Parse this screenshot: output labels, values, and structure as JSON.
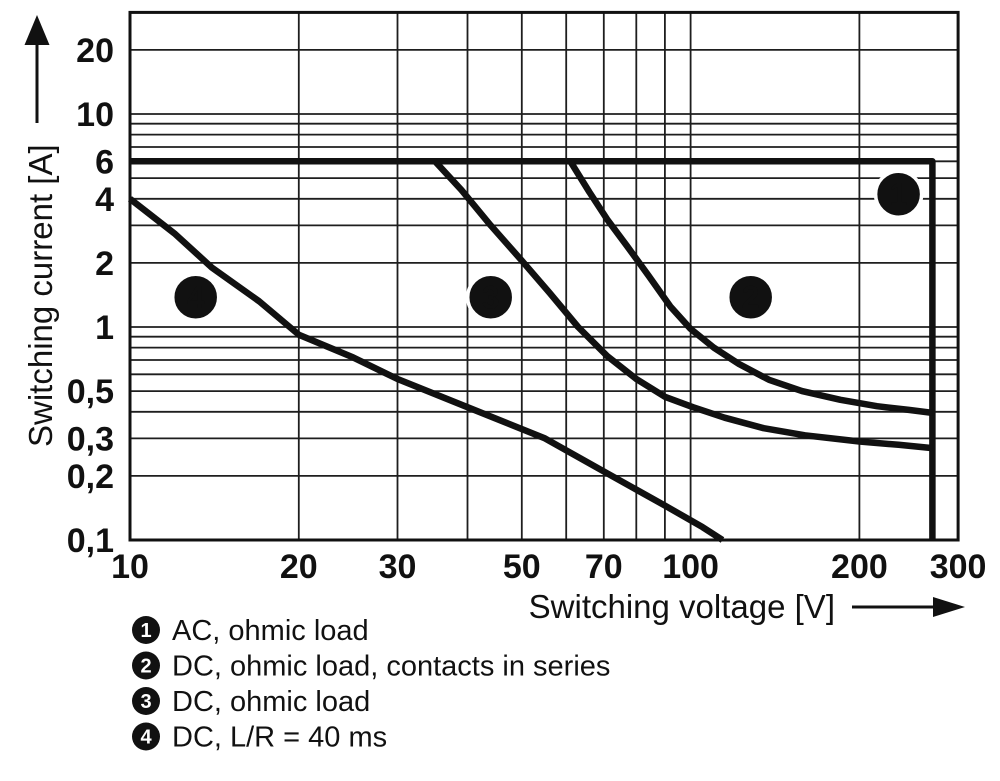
{
  "chart_data": {
    "type": "line",
    "x_scale": "log",
    "y_scale": "log",
    "xlim": [
      10,
      300
    ],
    "ylim": [
      0.1,
      30
    ],
    "xlabel": "Switching voltage [V]",
    "ylabel": "Switching current [A]",
    "grid": "on",
    "x_gridlines": [
      10,
      20,
      30,
      40,
      50,
      60,
      70,
      80,
      90,
      100,
      200,
      300
    ],
    "y_gridlines": [
      0.1,
      0.2,
      0.3,
      0.4,
      0.5,
      0.6,
      0.7,
      0.8,
      0.9,
      1,
      2,
      3,
      4,
      5,
      6,
      7,
      8,
      9,
      10,
      20,
      30
    ],
    "x_tick_values": [
      10,
      20,
      30,
      50,
      70,
      100,
      200,
      300
    ],
    "x_tick_labels": [
      "10",
      "20",
      "30",
      "50",
      "70",
      "100",
      "200",
      "300"
    ],
    "y_tick_values": [
      20,
      10,
      6,
      4,
      2,
      1,
      0.5,
      0.3,
      0.2,
      0.1
    ],
    "y_tick_labels": [
      "20",
      "10",
      "6",
      "4",
      "2",
      "1",
      "0,5",
      "0,3",
      "0,2",
      "0,1"
    ],
    "series": [
      {
        "id": "1",
        "name": "AC, ohmic load",
        "points": [
          [
            10,
            6
          ],
          [
            270,
            6
          ],
          [
            270,
            0.1
          ]
        ],
        "badge": {
          "x": 235,
          "y": 4.2
        }
      },
      {
        "id": "2",
        "name": "DC, ohmic load, contacts in series",
        "points": [
          [
            61,
            6
          ],
          [
            66,
            4.3
          ],
          [
            71,
            3.2
          ],
          [
            77,
            2.4
          ],
          [
            84,
            1.75
          ],
          [
            92,
            1.25
          ],
          [
            100,
            0.98
          ],
          [
            110,
            0.8
          ],
          [
            122,
            0.67
          ],
          [
            138,
            0.565
          ],
          [
            158,
            0.5
          ],
          [
            185,
            0.455
          ],
          [
            215,
            0.425
          ],
          [
            245,
            0.408
          ],
          [
            270,
            0.395
          ]
        ],
        "badge": {
          "x": 128,
          "y": 1.38
        }
      },
      {
        "id": "3",
        "name": "DC, ohmic load",
        "points": [
          [
            35,
            6
          ],
          [
            39,
            4.4
          ],
          [
            44,
            3.0
          ],
          [
            50,
            2.05
          ],
          [
            56,
            1.45
          ],
          [
            63,
            1.0
          ],
          [
            71,
            0.73
          ],
          [
            80,
            0.57
          ],
          [
            90,
            0.47
          ],
          [
            101,
            0.42
          ],
          [
            115,
            0.375
          ],
          [
            135,
            0.335
          ],
          [
            160,
            0.31
          ],
          [
            200,
            0.29
          ],
          [
            235,
            0.28
          ],
          [
            270,
            0.27
          ]
        ],
        "badge": {
          "x": 44,
          "y": 1.38
        }
      },
      {
        "id": "4",
        "name": "DC, L/R = 40 ms",
        "points": [
          [
            10,
            4
          ],
          [
            12,
            2.75
          ],
          [
            14,
            1.9
          ],
          [
            17,
            1.32
          ],
          [
            20,
            0.92
          ],
          [
            25,
            0.72
          ],
          [
            30,
            0.57
          ],
          [
            40,
            0.42
          ],
          [
            55,
            0.3
          ],
          [
            70,
            0.21
          ],
          [
            90,
            0.145
          ],
          [
            105,
            0.115
          ],
          [
            114,
            0.1
          ]
        ],
        "badge": {
          "x": 13.1,
          "y": 1.38
        }
      }
    ]
  },
  "legend": {
    "items": [
      {
        "num": "1",
        "text": "AC, ohmic load"
      },
      {
        "num": "2",
        "text": "DC, ohmic load, contacts in series"
      },
      {
        "num": "3",
        "text": "DC, ohmic load"
      },
      {
        "num": "4",
        "text": "DC, L/R = 40 ms"
      }
    ]
  },
  "colors": {
    "line": "#111111",
    "grid": "#1e1e1e",
    "background": "#ffffff",
    "badge_fill": "#111111",
    "badge_text": "#ffffff"
  }
}
